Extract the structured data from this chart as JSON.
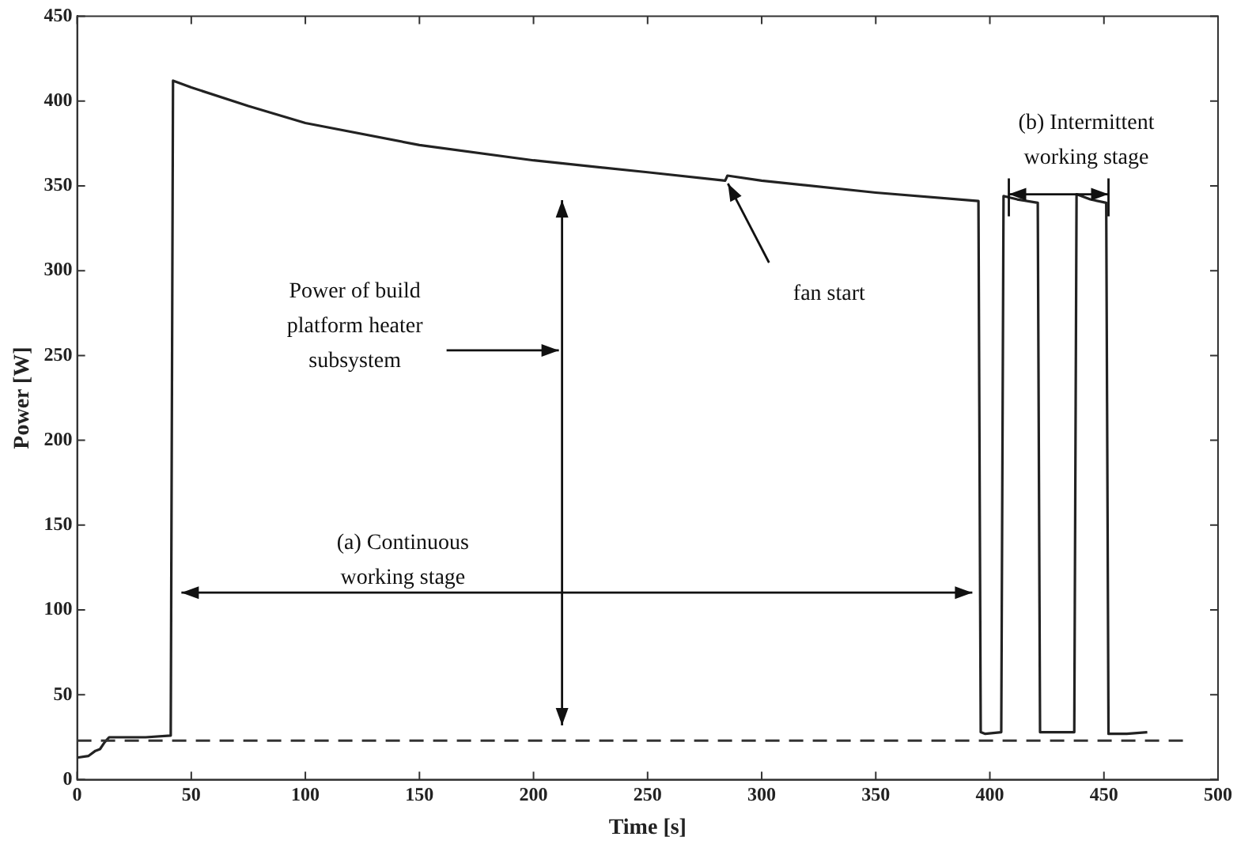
{
  "chart_data": {
    "type": "line",
    "xlabel": "Time [s]",
    "ylabel": "Power [W]",
    "x": [
      0,
      5,
      8,
      10,
      12,
      14,
      20,
      30,
      41,
      42,
      50,
      75,
      100,
      150,
      200,
      250,
      284,
      285,
      300,
      350,
      395,
      396,
      398,
      405,
      406,
      412,
      421,
      422,
      430,
      437,
      438,
      444,
      451,
      452,
      460,
      469
    ],
    "series": [
      {
        "color": "#222222",
        "values": [
          13,
          14,
          17,
          18,
          22,
          25,
          25,
          25,
          26,
          412,
          408,
          397,
          387,
          374,
          365,
          358,
          353,
          356,
          353,
          346,
          341,
          28,
          27,
          28,
          344,
          342,
          340,
          28,
          28,
          28,
          345,
          342,
          340,
          27,
          27,
          28
        ]
      }
    ],
    "xlim": [
      0,
      500
    ],
    "xticks": [
      0,
      50,
      100,
      150,
      200,
      250,
      300,
      350,
      400,
      450,
      500
    ],
    "ylim": [
      0,
      450
    ],
    "yticks": [
      0,
      50,
      100,
      150,
      200,
      250,
      300,
      350,
      400,
      450
    ],
    "grid": false,
    "legend": false,
    "marker": "none",
    "line_style": "solid",
    "ref_lines": [
      {
        "axis": "y",
        "value": 23,
        "color": "#333333",
        "line_style": "dashed"
      }
    ],
    "annotations": [
      "Power of build platform heater subsystem",
      "(a) Continuous working stage",
      "fan start",
      {
        "text": "(b) Intermittent working stage",
        "x": 452,
        "y": 345
      }
    ]
  }
}
